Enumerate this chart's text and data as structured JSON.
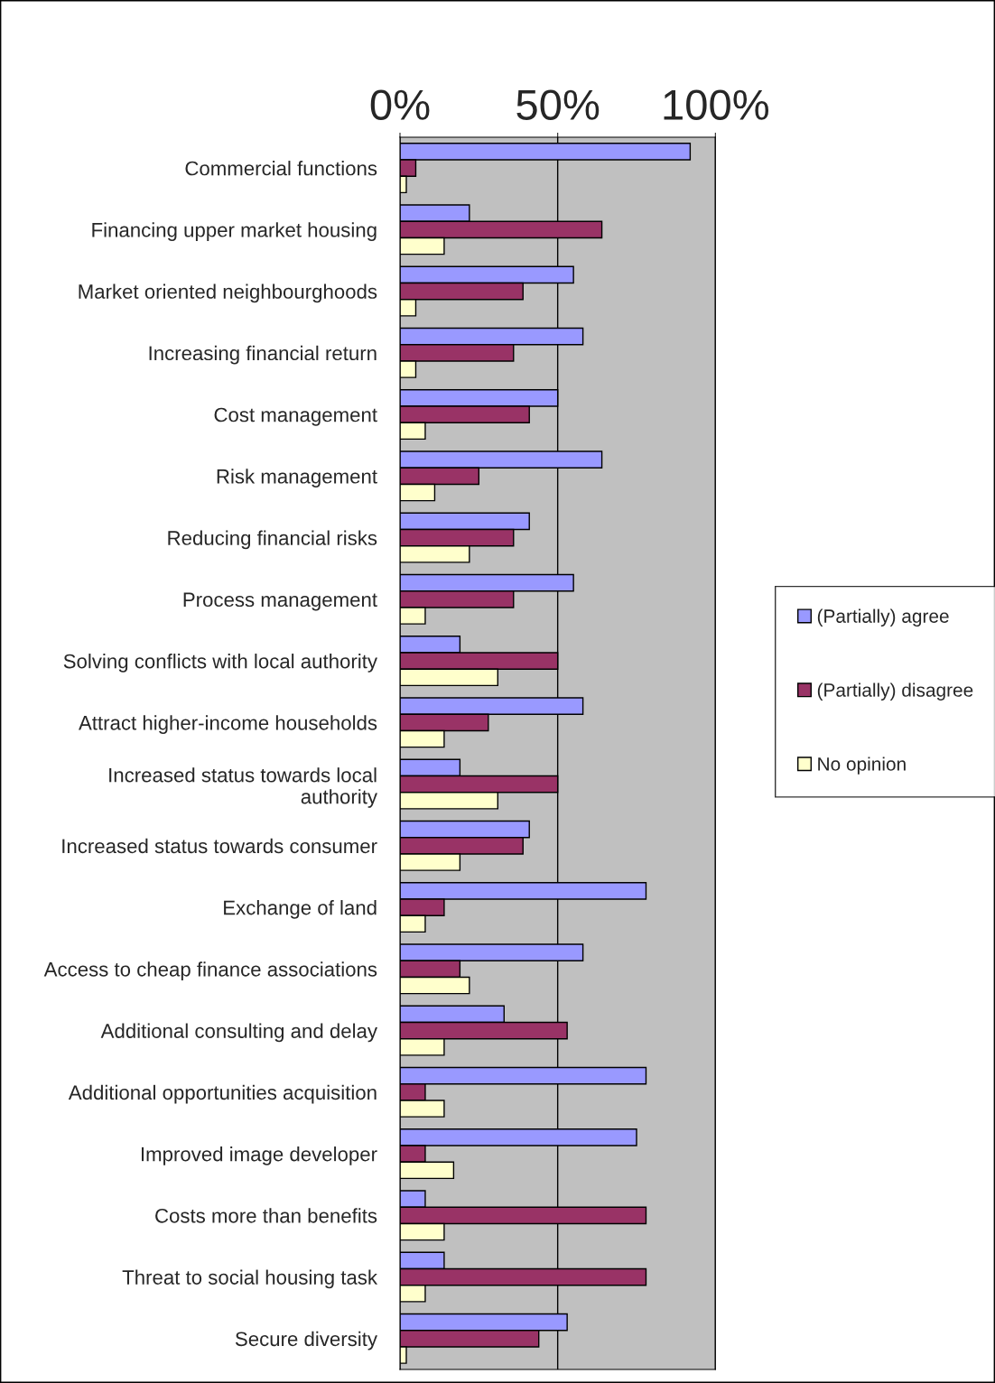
{
  "chart_data": {
    "type": "bar",
    "orientation": "horizontal",
    "categories": [
      "Commercial functions",
      "Financing upper market housing",
      "Market oriented neighbourghoods",
      "Increasing financial return",
      "Cost management",
      "Risk management",
      "Reducing financial risks",
      "Process management",
      "Solving conflicts with local authority",
      "Attract higher-income households",
      "Increased status towards local\nauthority",
      "Increased status towards consumer",
      "Exchange of land",
      "Access to cheap finance associations",
      "Additional consulting and delay",
      "Additional opportunities acquisition",
      "Improved image developer",
      "Costs more than benefits",
      "Threat to social housing task",
      "Secure diversity"
    ],
    "series": [
      {
        "name": "(Partially) agree",
        "color": "#9999ff",
        "values": [
          92,
          22,
          55,
          58,
          50,
          64,
          41,
          55,
          19,
          58,
          19,
          41,
          78,
          58,
          33,
          78,
          75,
          8,
          14,
          53
        ]
      },
      {
        "name": "(Partially) disagree",
        "color": "#993366",
        "values": [
          5,
          64,
          39,
          36,
          41,
          25,
          36,
          36,
          50,
          28,
          50,
          39,
          14,
          19,
          53,
          8,
          8,
          78,
          78,
          44
        ]
      },
      {
        "name": "No opinion",
        "color": "#ffffcc",
        "values": [
          2,
          14,
          5,
          5,
          8,
          11,
          22,
          8,
          31,
          14,
          31,
          19,
          8,
          22,
          14,
          14,
          17,
          14,
          8,
          2
        ]
      }
    ],
    "xlim": [
      0,
      100
    ],
    "xticks": [
      {
        "value": 0,
        "label": "0%"
      },
      {
        "value": 50,
        "label": "50%"
      },
      {
        "value": 100,
        "label": "100%"
      }
    ],
    "grid": "x",
    "legend": "right"
  }
}
